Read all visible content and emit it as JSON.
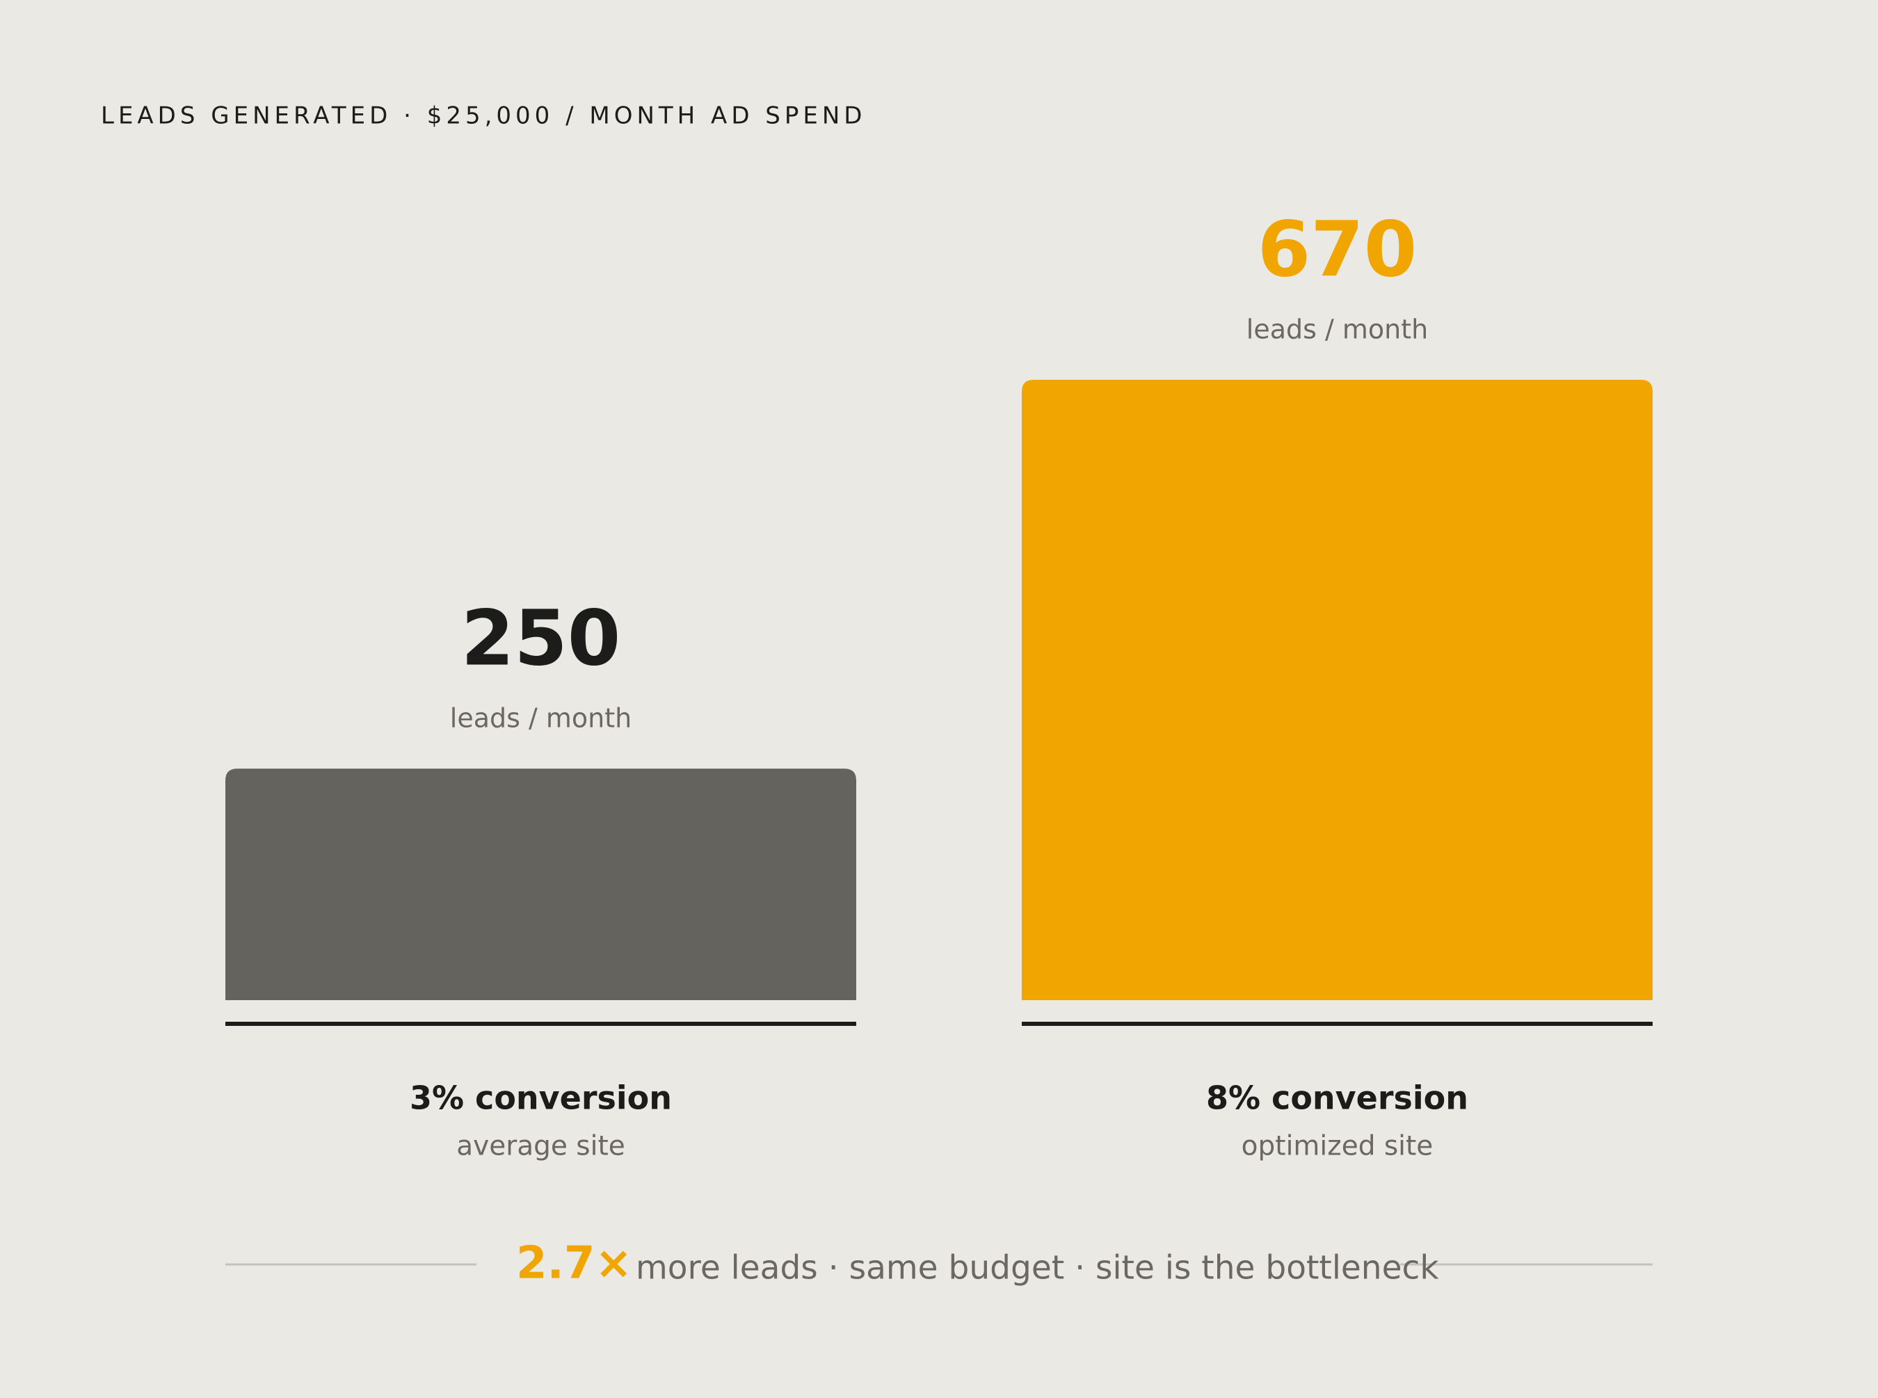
{
  "chart_data": {
    "type": "bar",
    "title": "LEADS GENERATED · $25,000 / MONTH AD SPEND",
    "categories": [
      "3% conversion",
      "8% conversion"
    ],
    "subcategories": [
      "average site",
      "optimized site"
    ],
    "values": [
      250,
      670
    ],
    "unit_labels": [
      "leads / month",
      "leads / month"
    ],
    "colors": [
      "#65635e",
      "#f0a500"
    ],
    "value_label_colors": [
      "#1c1c1a",
      "#f0a500"
    ],
    "annotation": {
      "emphasis": "2.7×",
      "text": "more leads · same budget · site is the bottleneck"
    }
  }
}
